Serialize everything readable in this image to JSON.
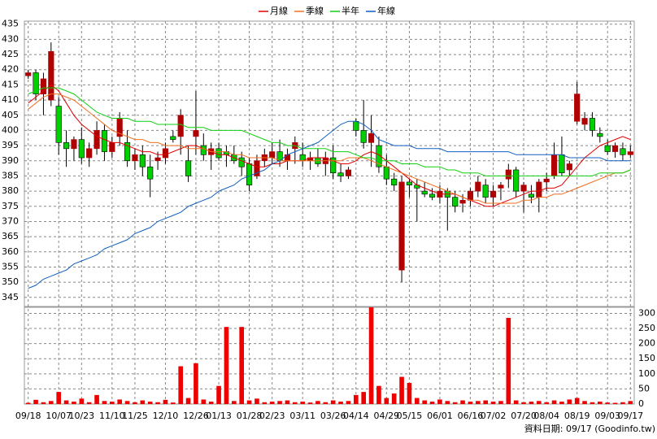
{
  "chart_data": [
    {
      "type": "candlestick",
      "categories": [
        "09/18",
        null,
        null,
        null,
        "10/07",
        null,
        null,
        "10/23",
        null,
        null,
        null,
        "11/10",
        null,
        null,
        "11/25",
        null,
        null,
        null,
        "12/10",
        null,
        null,
        null,
        "12/26",
        null,
        null,
        "01/13",
        null,
        null,
        null,
        "01/28",
        null,
        null,
        "02/23",
        null,
        null,
        null,
        "03/11",
        null,
        null,
        null,
        "03/26",
        null,
        null,
        "04/14",
        null,
        null,
        null,
        "04/29",
        null,
        null,
        "05/15",
        null,
        null,
        null,
        "06/01",
        null,
        null,
        null,
        "06/16",
        null,
        null,
        "07/02",
        null,
        null,
        null,
        "07/20",
        null,
        null,
        "08/04",
        null,
        null,
        null,
        "08/19",
        null,
        null,
        null,
        "09/03",
        null,
        null,
        "09/17"
      ],
      "open": [
        418,
        419,
        412,
        410,
        408,
        396,
        394,
        397,
        391,
        394,
        400,
        393,
        398,
        396,
        390,
        392,
        388,
        390,
        391,
        398,
        398,
        390,
        398,
        395,
        392,
        394,
        393,
        392,
        391,
        389,
        385,
        390,
        391,
        393,
        390,
        394,
        392,
        390,
        391,
        389,
        391,
        386,
        385,
        403,
        400,
        396,
        395,
        388,
        384,
        354,
        383,
        382,
        380,
        379,
        378,
        380,
        378,
        376,
        377,
        380,
        382,
        378,
        381,
        384,
        387,
        380,
        379,
        378,
        383,
        385,
        392,
        387,
        403,
        402,
        404,
        399,
        395,
        393,
        394,
        392
      ],
      "high": [
        420,
        420,
        419,
        429,
        411,
        400,
        398,
        401,
        396,
        403,
        402,
        398,
        406,
        400,
        394,
        395,
        392,
        393,
        396,
        400,
        407,
        395,
        413,
        399,
        396,
        396,
        395,
        395,
        393,
        391,
        392,
        394,
        396,
        397,
        394,
        398,
        396,
        393,
        394,
        393,
        395,
        389,
        388,
        404,
        410,
        405,
        398,
        392,
        386,
        385,
        384,
        384,
        383,
        381,
        382,
        381,
        380,
        379,
        381,
        385,
        384,
        382,
        383,
        389,
        388,
        383,
        382,
        384,
        386,
        396,
        398,
        390,
        416,
        406,
        406,
        401,
        397,
        396,
        396,
        395
      ],
      "low": [
        417,
        410,
        405,
        408,
        392,
        388,
        390,
        389,
        388,
        392,
        390,
        391,
        395,
        388,
        387,
        385,
        378,
        387,
        389,
        396,
        392,
        383,
        392,
        390,
        387,
        390,
        388,
        389,
        385,
        380,
        384,
        388,
        389,
        388,
        387,
        389,
        388,
        387,
        388,
        385,
        384,
        383,
        384,
        398,
        394,
        388,
        386,
        382,
        380,
        350,
        378,
        370,
        378,
        377,
        376,
        367,
        373,
        373,
        375,
        378,
        376,
        375,
        377,
        381,
        378,
        373,
        376,
        373,
        380,
        384,
        385,
        385,
        402,
        400,
        398,
        396,
        392,
        391,
        390,
        391
      ],
      "close": [
        419,
        412,
        417,
        426,
        396,
        394,
        397,
        391,
        394,
        400,
        393,
        396,
        404,
        390,
        392,
        388,
        384,
        391,
        394,
        397,
        405,
        385,
        400,
        392,
        394,
        391,
        392,
        390,
        388,
        382,
        390,
        392,
        393,
        390,
        392,
        396,
        390,
        391,
        389,
        391,
        386,
        385,
        387,
        400,
        396,
        399,
        388,
        384,
        382,
        383,
        382,
        381,
        379,
        378,
        380,
        378,
        375,
        377,
        380,
        383,
        378,
        380,
        382,
        387,
        380,
        382,
        378,
        383,
        384,
        392,
        386,
        389,
        412,
        404,
        400,
        398,
        393,
        395,
        392,
        393
      ],
      "up_color": "#b00000",
      "down_color": "#00d000",
      "ylim": [
        342,
        436
      ],
      "yticks": [
        345,
        350,
        355,
        360,
        365,
        370,
        375,
        380,
        385,
        390,
        395,
        400,
        405,
        410,
        415,
        420,
        425,
        430,
        435
      ],
      "grid": true,
      "series": [
        {
          "name": "月線",
          "color": "#e00000",
          "values": [
            409,
            411,
            413,
            415,
            413,
            409,
            405,
            402,
            400,
            398,
            397,
            396,
            396,
            395,
            394,
            393,
            393,
            392,
            392,
            393,
            394,
            395,
            395,
            394,
            393,
            392,
            392,
            391,
            390,
            389,
            388,
            388,
            389,
            389,
            390,
            390,
            390,
            391,
            391,
            391,
            390,
            389,
            389,
            390,
            392,
            393,
            392,
            390,
            388,
            386,
            384,
            382,
            381,
            380,
            379,
            379,
            379,
            378,
            377,
            376,
            375,
            375,
            376,
            377,
            378,
            379,
            380,
            380,
            381,
            381,
            382,
            385,
            388,
            391,
            393,
            395,
            396,
            397,
            398,
            397
          ]
        },
        {
          "name": "季線",
          "color": "#f07020",
          "values": [
            407,
            409,
            411,
            412,
            412,
            411,
            410,
            408,
            406,
            404,
            402,
            400,
            399,
            398,
            397,
            397,
            396,
            396,
            395,
            395,
            395,
            394,
            394,
            394,
            393,
            393,
            393,
            392,
            392,
            391,
            391,
            391,
            391,
            390,
            390,
            390,
            390,
            390,
            390,
            390,
            390,
            390,
            391,
            391,
            391,
            390,
            389,
            388,
            387,
            386,
            385,
            384,
            383,
            382,
            381,
            380,
            379,
            378,
            377,
            377,
            376,
            376,
            376,
            376,
            376,
            377,
            377,
            378,
            378,
            379,
            379,
            380,
            381,
            382,
            383,
            384,
            385,
            386,
            386,
            387
          ]
        },
        {
          "name": "半年",
          "color": "#10d010",
          "values": [
            412,
            413,
            414,
            414,
            414,
            413,
            412,
            410,
            408,
            406,
            405,
            404,
            404,
            404,
            403,
            403,
            403,
            402,
            402,
            402,
            402,
            401,
            401,
            401,
            400,
            400,
            400,
            400,
            400,
            399,
            398,
            397,
            396,
            396,
            395,
            395,
            394,
            394,
            394,
            394,
            393,
            393,
            393,
            392,
            391,
            391,
            390,
            390,
            390,
            389,
            389,
            389,
            388,
            388,
            388,
            387,
            387,
            386,
            386,
            386,
            385,
            385,
            385,
            385,
            385,
            385,
            385,
            385,
            385,
            385,
            385,
            385,
            385,
            385,
            385,
            386,
            386,
            386,
            386,
            387
          ]
        },
        {
          "name": "年線",
          "color": "#1060c0",
          "values": [
            348,
            349,
            351,
            352,
            353,
            354,
            356,
            357,
            358,
            359,
            361,
            362,
            363,
            364,
            366,
            367,
            368,
            370,
            371,
            372,
            373,
            375,
            376,
            377,
            378,
            380,
            381,
            382,
            384,
            385,
            386,
            387,
            389,
            390,
            392,
            393,
            394,
            395,
            396,
            398,
            400,
            402,
            403,
            403,
            402,
            400,
            397,
            396,
            395,
            395,
            395,
            394,
            394,
            394,
            394,
            393,
            393,
            393,
            393,
            393,
            393,
            393,
            393,
            393,
            392,
            392,
            392,
            392,
            392,
            392,
            392,
            391,
            391,
            391,
            391,
            391,
            390,
            390,
            390,
            390
          ]
        }
      ]
    },
    {
      "type": "bar",
      "color": "#ee0000",
      "values": [
        4,
        14,
        6,
        10,
        40,
        12,
        8,
        18,
        6,
        30,
        10,
        8,
        15,
        10,
        6,
        12,
        8,
        6,
        14,
        5,
        125,
        20,
        135,
        15,
        8,
        60,
        255,
        10,
        255,
        12,
        18,
        6,
        8,
        10,
        12,
        6,
        8,
        5,
        10,
        6,
        12,
        8,
        10,
        30,
        40,
        320,
        60,
        20,
        35,
        90,
        70,
        20,
        12,
        8,
        15,
        10,
        6,
        12,
        8,
        10,
        12,
        8,
        10,
        285,
        12,
        6,
        8,
        10,
        6,
        12,
        8,
        15,
        20,
        10,
        6,
        8,
        5,
        4,
        6,
        10
      ],
      "ylim": [
        0,
        320
      ],
      "yticks": [
        0,
        50,
        100,
        150,
        200,
        250,
        300
      ],
      "grid": true
    }
  ],
  "footer": "資料日期: 09/17  (Goodinfo.tw)"
}
